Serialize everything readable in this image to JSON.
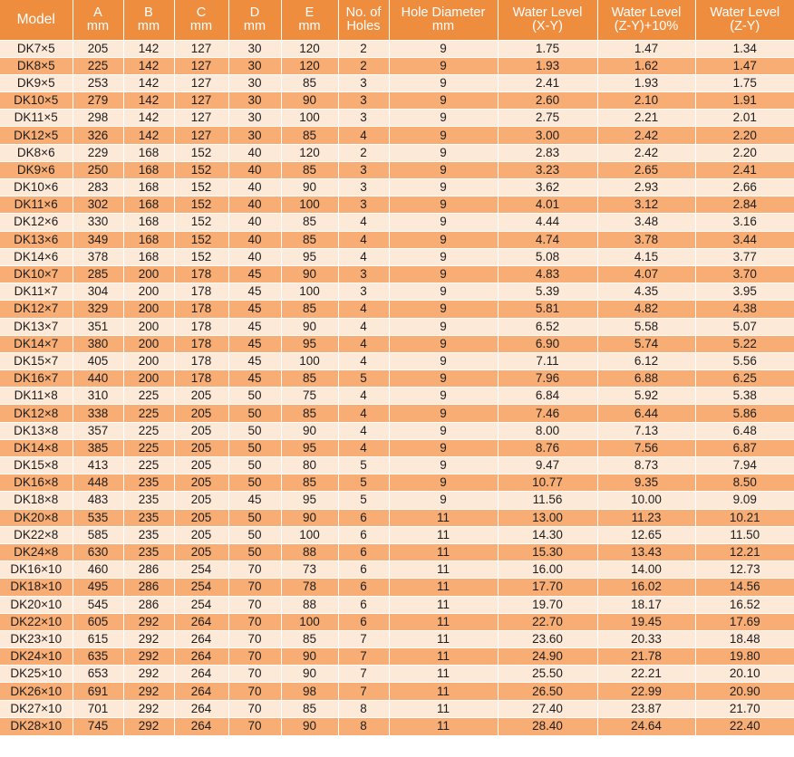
{
  "table": {
    "headers": [
      {
        "line1": "Model",
        "line2": ""
      },
      {
        "line1": "A",
        "line2": "mm"
      },
      {
        "line1": "B",
        "line2": "mm"
      },
      {
        "line1": "C",
        "line2": "mm"
      },
      {
        "line1": "D",
        "line2": "mm"
      },
      {
        "line1": "E",
        "line2": "mm"
      },
      {
        "line1": "No. of",
        "line2": "Holes"
      },
      {
        "line1": "Hole Diameter",
        "line2": "mm"
      },
      {
        "line1": "Water Level",
        "line2": "(X-Y)"
      },
      {
        "line1": "Water Level",
        "line2": "(Z-Y)+10%"
      },
      {
        "line1": "Water Level",
        "line2": "(Z-Y)"
      }
    ],
    "rows": [
      [
        "DK7×5",
        "205",
        "142",
        "127",
        "30",
        "120",
        "2",
        "9",
        "1.75",
        "1.47",
        "1.34"
      ],
      [
        "DK8×5",
        "225",
        "142",
        "127",
        "30",
        "120",
        "2",
        "9",
        "1.93",
        "1.62",
        "1.47"
      ],
      [
        "DK9×5",
        "253",
        "142",
        "127",
        "30",
        "85",
        "3",
        "9",
        "2.41",
        "1.93",
        "1.75"
      ],
      [
        "DK10×5",
        "279",
        "142",
        "127",
        "30",
        "90",
        "3",
        "9",
        "2.60",
        "2.10",
        "1.91"
      ],
      [
        "DK11×5",
        "298",
        "142",
        "127",
        "30",
        "100",
        "3",
        "9",
        "2.75",
        "2.21",
        "2.01"
      ],
      [
        "DK12×5",
        "326",
        "142",
        "127",
        "30",
        "85",
        "4",
        "9",
        "3.00",
        "2.42",
        "2.20"
      ],
      [
        "DK8×6",
        "229",
        "168",
        "152",
        "40",
        "120",
        "2",
        "9",
        "2.83",
        "2.42",
        "2.20"
      ],
      [
        "DK9×6",
        "250",
        "168",
        "152",
        "40",
        "85",
        "3",
        "9",
        "3.23",
        "2.65",
        "2.41"
      ],
      [
        "DK10×6",
        "283",
        "168",
        "152",
        "40",
        "90",
        "3",
        "9",
        "3.62",
        "2.93",
        "2.66"
      ],
      [
        "DK11×6",
        "302",
        "168",
        "152",
        "40",
        "100",
        "3",
        "9",
        "4.01",
        "3.12",
        "2.84"
      ],
      [
        "DK12×6",
        "330",
        "168",
        "152",
        "40",
        "85",
        "4",
        "9",
        "4.44",
        "3.48",
        "3.16"
      ],
      [
        "DK13×6",
        "349",
        "168",
        "152",
        "40",
        "85",
        "4",
        "9",
        "4.74",
        "3.78",
        "3.44"
      ],
      [
        "DK14×6",
        "378",
        "168",
        "152",
        "40",
        "95",
        "4",
        "9",
        "5.08",
        "4.15",
        "3.77"
      ],
      [
        "DK10×7",
        "285",
        "200",
        "178",
        "45",
        "90",
        "3",
        "9",
        "4.83",
        "4.07",
        "3.70"
      ],
      [
        "DK11×7",
        "304",
        "200",
        "178",
        "45",
        "100",
        "3",
        "9",
        "5.39",
        "4.35",
        "3.95"
      ],
      [
        "DK12×7",
        "329",
        "200",
        "178",
        "45",
        "85",
        "4",
        "9",
        "5.81",
        "4.82",
        "4.38"
      ],
      [
        "DK13×7",
        "351",
        "200",
        "178",
        "45",
        "90",
        "4",
        "9",
        "6.52",
        "5.58",
        "5.07"
      ],
      [
        "DK14×7",
        "380",
        "200",
        "178",
        "45",
        "95",
        "4",
        "9",
        "6.90",
        "5.74",
        "5.22"
      ],
      [
        "DK15×7",
        "405",
        "200",
        "178",
        "45",
        "100",
        "4",
        "9",
        "7.11",
        "6.12",
        "5.56"
      ],
      [
        "DK16×7",
        "440",
        "200",
        "178",
        "45",
        "85",
        "5",
        "9",
        "7.96",
        "6.88",
        "6.25"
      ],
      [
        "DK11×8",
        "310",
        "225",
        "205",
        "50",
        "75",
        "4",
        "9",
        "6.84",
        "5.92",
        "5.38"
      ],
      [
        "DK12×8",
        "338",
        "225",
        "205",
        "50",
        "85",
        "4",
        "9",
        "7.46",
        "6.44",
        "5.86"
      ],
      [
        "DK13×8",
        "357",
        "225",
        "205",
        "50",
        "90",
        "4",
        "9",
        "8.00",
        "7.13",
        "6.48"
      ],
      [
        "DK14×8",
        "385",
        "225",
        "205",
        "50",
        "95",
        "4",
        "9",
        "8.76",
        "7.56",
        "6.87"
      ],
      [
        "DK15×8",
        "413",
        "225",
        "205",
        "50",
        "80",
        "5",
        "9",
        "9.47",
        "8.73",
        "7.94"
      ],
      [
        "DK16×8",
        "448",
        "235",
        "205",
        "50",
        "85",
        "5",
        "9",
        "10.77",
        "9.35",
        "8.50"
      ],
      [
        "DK18×8",
        "483",
        "235",
        "205",
        "45",
        "95",
        "5",
        "9",
        "11.56",
        "10.00",
        "9.09"
      ],
      [
        "DK20×8",
        "535",
        "235",
        "205",
        "50",
        "90",
        "6",
        "11",
        "13.00",
        "11.23",
        "10.21"
      ],
      [
        "DK22×8",
        "585",
        "235",
        "205",
        "50",
        "100",
        "6",
        "11",
        "14.30",
        "12.65",
        "11.50"
      ],
      [
        "DK24×8",
        "630",
        "235",
        "205",
        "50",
        "88",
        "6",
        "11",
        "15.30",
        "13.43",
        "12.21"
      ],
      [
        "DK16×10",
        "460",
        "286",
        "254",
        "70",
        "73",
        "6",
        "11",
        "16.00",
        "14.00",
        "12.73"
      ],
      [
        "DK18×10",
        "495",
        "286",
        "254",
        "70",
        "78",
        "6",
        "11",
        "17.70",
        "16.02",
        "14.56"
      ],
      [
        "DK20×10",
        "545",
        "286",
        "254",
        "70",
        "88",
        "6",
        "11",
        "19.70",
        "18.17",
        "16.52"
      ],
      [
        "DK22×10",
        "605",
        "292",
        "264",
        "70",
        "100",
        "6",
        "11",
        "22.70",
        "19.45",
        "17.69"
      ],
      [
        "DK23×10",
        "615",
        "292",
        "264",
        "70",
        "85",
        "7",
        "11",
        "23.60",
        "20.33",
        "18.48"
      ],
      [
        "DK24×10",
        "635",
        "292",
        "264",
        "70",
        "90",
        "7",
        "11",
        "24.90",
        "21.78",
        "19.80"
      ],
      [
        "DK25×10",
        "653",
        "292",
        "264",
        "70",
        "90",
        "7",
        "11",
        "25.50",
        "22.21",
        "20.10"
      ],
      [
        "DK26×10",
        "691",
        "292",
        "264",
        "70",
        "98",
        "7",
        "11",
        "26.50",
        "22.99",
        "20.90"
      ],
      [
        "DK27×10",
        "701",
        "292",
        "264",
        "70",
        "85",
        "8",
        "11",
        "27.40",
        "23.87",
        "21.70"
      ],
      [
        "DK28×10",
        "745",
        "292",
        "264",
        "70",
        "90",
        "8",
        "11",
        "28.40",
        "24.64",
        "22.40"
      ]
    ]
  },
  "colors": {
    "header_bg": "#ef8d3f",
    "row_light": "#fde9d8",
    "row_dark": "#f8ad74"
  }
}
